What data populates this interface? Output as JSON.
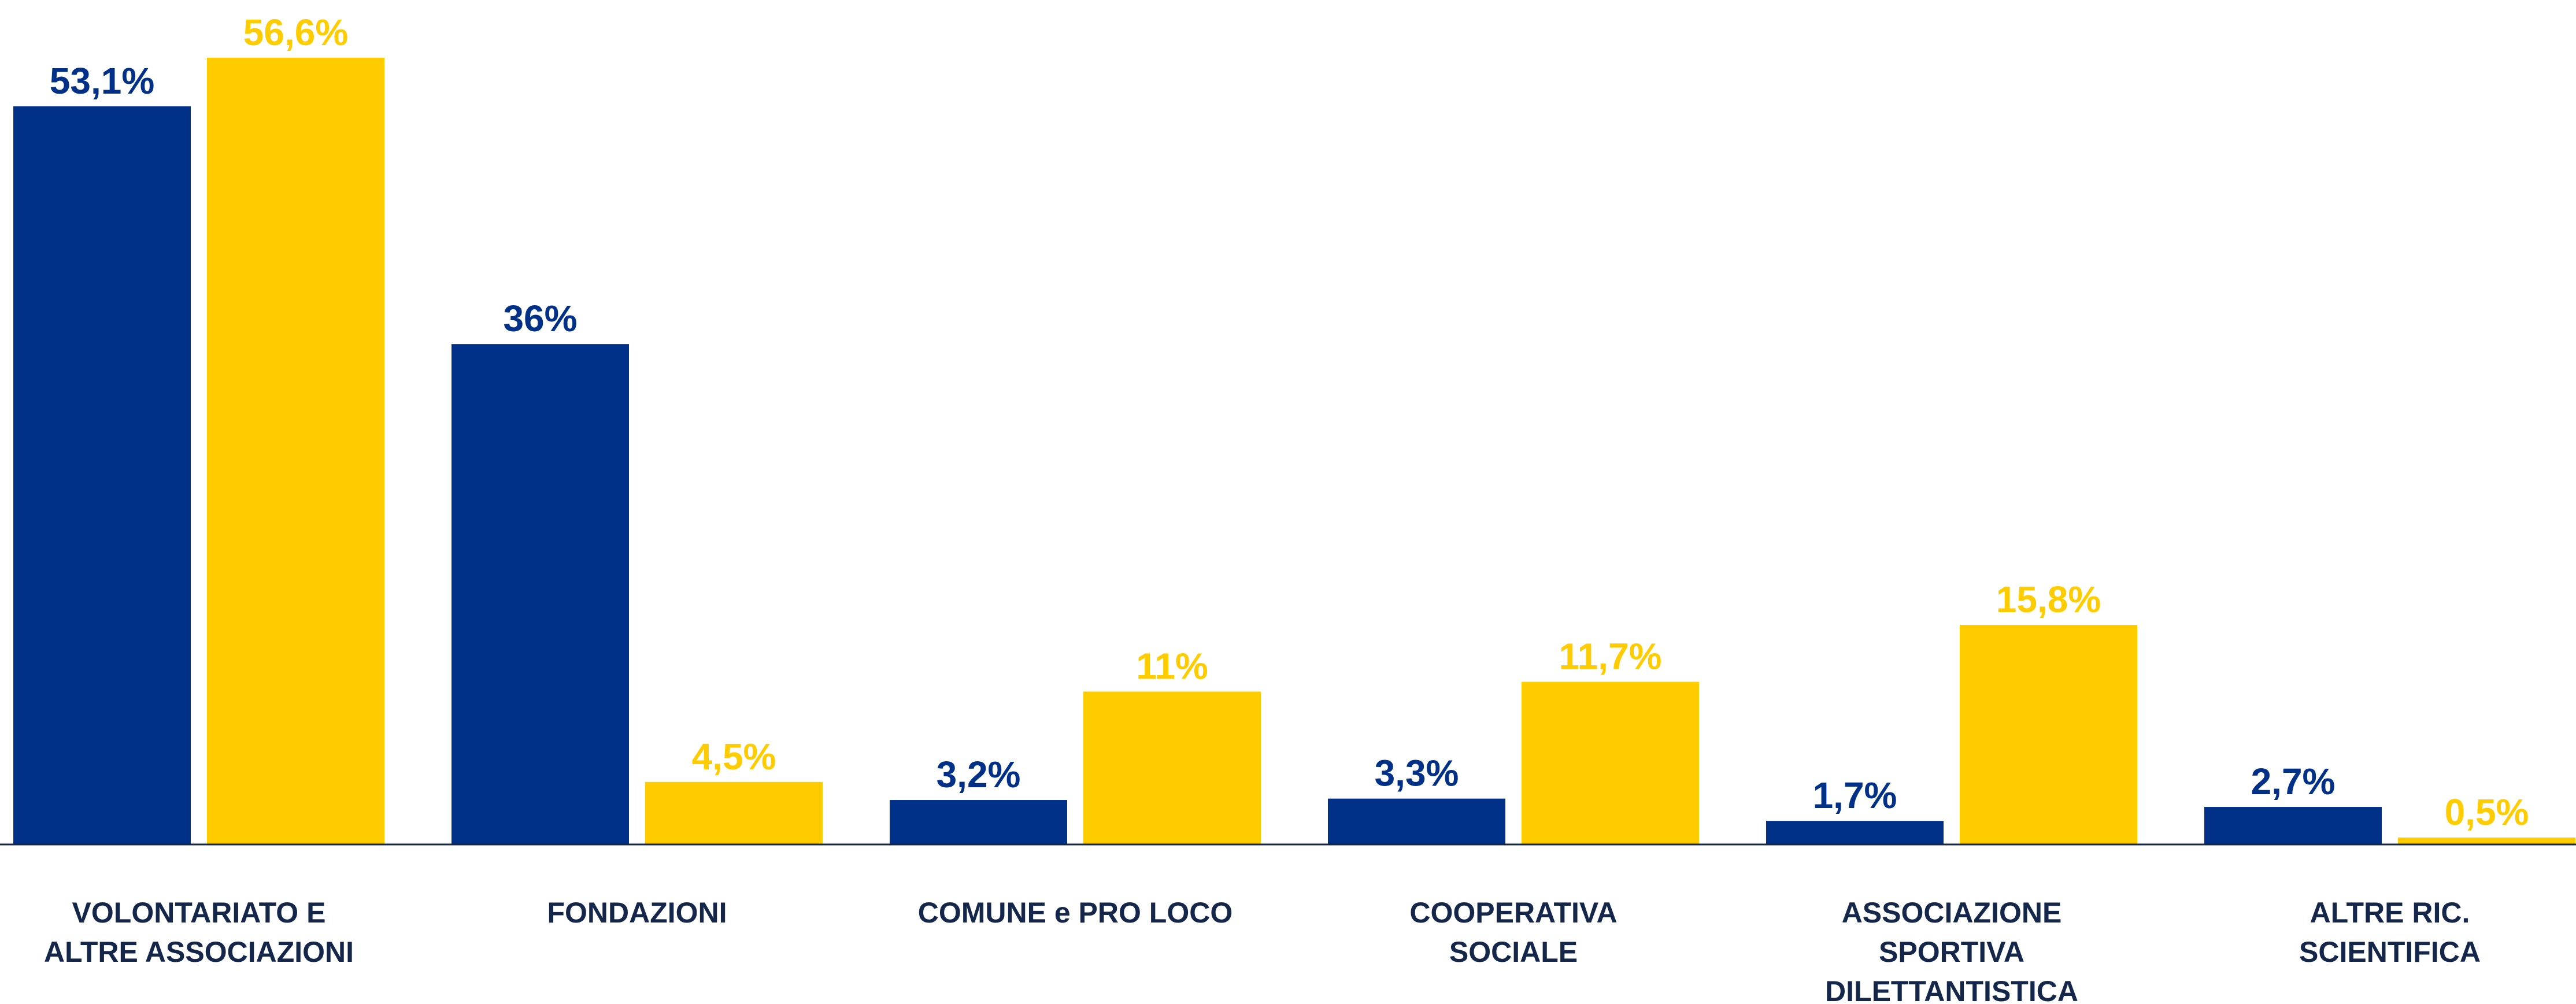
{
  "chart_data": {
    "type": "bar",
    "categories": [
      "VOLONTARIATO E ALTRE ASSOCIAZIONI",
      "FONDAZIONI",
      "COMUNE e PRO LOCO",
      "COOPERATIVA SOCIALE",
      "ASSOCIAZIONE SPORTIVA DILETTANTISTICA",
      "ALTRE RIC. SCIENTIFICA"
    ],
    "series": [
      {
        "color": "#003087",
        "values": [
          53.1,
          36,
          3.2,
          3.3,
          1.7,
          2.7
        ],
        "value_labels": [
          "53,1%",
          "36%",
          "3,2%",
          "3,3%",
          "1,7%",
          "2,7%"
        ]
      },
      {
        "color": "#ffcc00",
        "values": [
          56.6,
          4.5,
          11,
          11.7,
          15.8,
          0.5
        ],
        "value_labels": [
          "56,6%",
          "4,5%",
          "11%",
          "11,7%",
          "15,8%",
          "0,5%"
        ]
      }
    ],
    "ylim": [
      0,
      60
    ]
  }
}
